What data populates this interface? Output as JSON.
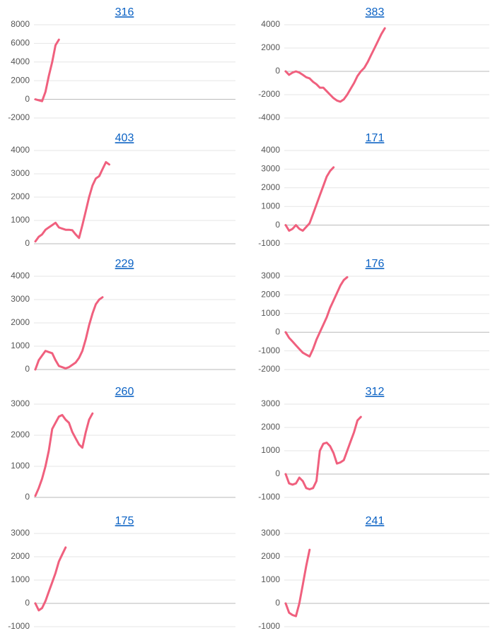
{
  "chart_data": [
    {
      "type": "line",
      "title": "316",
      "color": "#f0607e",
      "ylim": [
        -2000,
        8000
      ],
      "yticks": [
        -2000,
        0,
        2000,
        4000,
        6000,
        8000
      ],
      "grid": true,
      "categories": [
        null,
        null,
        null,
        null,
        null,
        null,
        null,
        null,
        null,
        null,
        null,
        null,
        null,
        null,
        null,
        null,
        null,
        null,
        null,
        null,
        null,
        null,
        null,
        null,
        null,
        null,
        null,
        null,
        null,
        null,
        null,
        null,
        null,
        null,
        null,
        null,
        null,
        null,
        null,
        null,
        null,
        null,
        null,
        null,
        null,
        null,
        null,
        null,
        null,
        null,
        null,
        null,
        null,
        null,
        null,
        null,
        null,
        null,
        null,
        null
      ],
      "values": [
        0,
        -100,
        -200,
        800,
        2500,
        4000,
        5800,
        6400,
        null,
        null,
        null,
        null,
        null,
        null,
        null,
        null,
        null,
        null,
        null,
        null,
        null,
        null,
        null,
        null,
        null,
        null,
        null,
        null,
        null,
        null,
        null,
        null,
        null,
        null,
        null,
        null,
        null,
        null,
        null,
        null,
        null,
        null,
        null,
        null,
        null,
        null,
        null,
        null,
        null,
        null,
        null,
        null,
        null,
        null,
        null,
        null,
        null,
        null,
        null,
        null
      ]
    },
    {
      "type": "line",
      "title": "383",
      "color": "#f0607e",
      "ylim": [
        -4000,
        4000
      ],
      "yticks": [
        -4000,
        -2000,
        0,
        2000,
        4000
      ],
      "grid": true,
      "categories": [
        null,
        null,
        null,
        null,
        null,
        null,
        null,
        null,
        null,
        null,
        null,
        null,
        null,
        null,
        null,
        null,
        null,
        null,
        null,
        null,
        null,
        null,
        null,
        null,
        null,
        null,
        null,
        null,
        null,
        null,
        null,
        null,
        null,
        null,
        null,
        null,
        null,
        null,
        null,
        null,
        null,
        null,
        null,
        null,
        null,
        null,
        null,
        null,
        null,
        null,
        null,
        null,
        null,
        null,
        null,
        null,
        null,
        null,
        null,
        null
      ],
      "values": [
        0,
        -300,
        -100,
        0,
        -100,
        -300,
        -500,
        -600,
        -900,
        -1100,
        -1400,
        -1400,
        -1700,
        -2000,
        -2300,
        -2500,
        -2600,
        -2400,
        -2000,
        -1500,
        -1000,
        -400,
        0,
        300,
        800,
        1400,
        2000,
        2600,
        3200,
        3700,
        null,
        null,
        null,
        null,
        null,
        null,
        null,
        null,
        null,
        null,
        null,
        null,
        null,
        null,
        null,
        null,
        null,
        null,
        null,
        null,
        null,
        null,
        null,
        null,
        null,
        null,
        null,
        null,
        null,
        null
      ]
    },
    {
      "type": "line",
      "title": "403",
      "color": "#f0607e",
      "ylim": [
        0,
        4000
      ],
      "yticks": [
        0,
        1000,
        2000,
        3000,
        4000
      ],
      "grid": true,
      "categories": [
        null,
        null,
        null,
        null,
        null,
        null,
        null,
        null,
        null,
        null,
        null,
        null,
        null,
        null,
        null,
        null,
        null,
        null,
        null,
        null,
        null,
        null,
        null,
        null,
        null,
        null,
        null,
        null,
        null,
        null,
        null,
        null,
        null,
        null,
        null,
        null,
        null,
        null,
        null,
        null,
        null,
        null,
        null,
        null,
        null,
        null,
        null,
        null,
        null,
        null,
        null,
        null,
        null,
        null,
        null,
        null,
        null,
        null,
        null,
        null
      ],
      "values": [
        100,
        300,
        400,
        600,
        700,
        800,
        900,
        700,
        650,
        600,
        600,
        580,
        400,
        250,
        800,
        1400,
        2000,
        2500,
        2800,
        2900,
        3200,
        3500,
        3400,
        null,
        null,
        null,
        null,
        null,
        null,
        null,
        null,
        null,
        null,
        null,
        null,
        null,
        null,
        null,
        null,
        null,
        null,
        null,
        null,
        null,
        null,
        null,
        null,
        null,
        null,
        null,
        null,
        null,
        null,
        null,
        null,
        null,
        null,
        null,
        null,
        null
      ]
    },
    {
      "type": "line",
      "title": "171",
      "color": "#f0607e",
      "ylim": [
        -1000,
        4000
      ],
      "yticks": [
        -1000,
        0,
        1000,
        2000,
        3000,
        4000
      ],
      "grid": true,
      "categories": [
        null,
        null,
        null,
        null,
        null,
        null,
        null,
        null,
        null,
        null,
        null,
        null,
        null,
        null,
        null,
        null,
        null,
        null,
        null,
        null,
        null,
        null,
        null,
        null,
        null,
        null,
        null,
        null,
        null,
        null,
        null,
        null,
        null,
        null,
        null,
        null,
        null,
        null,
        null,
        null,
        null,
        null,
        null,
        null,
        null,
        null,
        null,
        null,
        null,
        null,
        null,
        null,
        null,
        null,
        null,
        null,
        null,
        null,
        null,
        null
      ],
      "values": [
        0,
        -300,
        -200,
        0,
        -200,
        -300,
        -100,
        100,
        600,
        1100,
        1600,
        2100,
        2600,
        2900,
        3100,
        null,
        null,
        null,
        null,
        null,
        null,
        null,
        null,
        null,
        null,
        null,
        null,
        null,
        null,
        null,
        null,
        null,
        null,
        null,
        null,
        null,
        null,
        null,
        null,
        null,
        null,
        null,
        null,
        null,
        null,
        null,
        null,
        null,
        null,
        null,
        null,
        null,
        null,
        null,
        null,
        null,
        null,
        null,
        null,
        null
      ]
    },
    {
      "type": "line",
      "title": "229",
      "color": "#f0607e",
      "ylim": [
        0,
        4000
      ],
      "yticks": [
        0,
        1000,
        2000,
        3000,
        4000
      ],
      "grid": true,
      "categories": [
        null,
        null,
        null,
        null,
        null,
        null,
        null,
        null,
        null,
        null,
        null,
        null,
        null,
        null,
        null,
        null,
        null,
        null,
        null,
        null,
        null,
        null,
        null,
        null,
        null,
        null,
        null,
        null,
        null,
        null,
        null,
        null,
        null,
        null,
        null,
        null,
        null,
        null,
        null,
        null,
        null,
        null,
        null,
        null,
        null,
        null,
        null,
        null,
        null,
        null,
        null,
        null,
        null,
        null,
        null,
        null,
        null,
        null,
        null,
        null
      ],
      "values": [
        0,
        400,
        600,
        800,
        750,
        700,
        400,
        150,
        100,
        50,
        100,
        200,
        300,
        500,
        800,
        1300,
        1900,
        2400,
        2800,
        3000,
        3100,
        null,
        null,
        null,
        null,
        null,
        null,
        null,
        null,
        null,
        null,
        null,
        null,
        null,
        null,
        null,
        null,
        null,
        null,
        null,
        null,
        null,
        null,
        null,
        null,
        null,
        null,
        null,
        null,
        null,
        null,
        null,
        null,
        null,
        null,
        null,
        null,
        null,
        null,
        null
      ]
    },
    {
      "type": "line",
      "title": "176",
      "color": "#f0607e",
      "ylim": [
        -2000,
        3000
      ],
      "yticks": [
        -2000,
        -1000,
        0,
        1000,
        2000,
        3000
      ],
      "grid": true,
      "categories": [
        null,
        null,
        null,
        null,
        null,
        null,
        null,
        null,
        null,
        null,
        null,
        null,
        null,
        null,
        null,
        null,
        null,
        null,
        null,
        null,
        null,
        null,
        null,
        null,
        null,
        null,
        null,
        null,
        null,
        null,
        null,
        null,
        null,
        null,
        null,
        null,
        null,
        null,
        null,
        null,
        null,
        null,
        null,
        null,
        null,
        null,
        null,
        null,
        null,
        null,
        null,
        null,
        null,
        null,
        null,
        null,
        null,
        null,
        null,
        null
      ],
      "values": [
        0,
        -300,
        -500,
        -700,
        -900,
        -1100,
        -1200,
        -1300,
        -900,
        -400,
        0,
        400,
        800,
        1300,
        1700,
        2100,
        2500,
        2800,
        2950,
        null,
        null,
        null,
        null,
        null,
        null,
        null,
        null,
        null,
        null,
        null,
        null,
        null,
        null,
        null,
        null,
        null,
        null,
        null,
        null,
        null,
        null,
        null,
        null,
        null,
        null,
        null,
        null,
        null,
        null,
        null,
        null,
        null,
        null,
        null,
        null,
        null,
        null,
        null,
        null,
        null
      ]
    },
    {
      "type": "line",
      "title": "260",
      "color": "#f0607e",
      "ylim": [
        0,
        3000
      ],
      "yticks": [
        0,
        1000,
        2000,
        3000
      ],
      "grid": true,
      "categories": [
        null,
        null,
        null,
        null,
        null,
        null,
        null,
        null,
        null,
        null,
        null,
        null,
        null,
        null,
        null,
        null,
        null,
        null,
        null,
        null,
        null,
        null,
        null,
        null,
        null,
        null,
        null,
        null,
        null,
        null,
        null,
        null,
        null,
        null,
        null,
        null,
        null,
        null,
        null,
        null,
        null,
        null,
        null,
        null,
        null,
        null,
        null,
        null,
        null,
        null,
        null,
        null,
        null,
        null,
        null,
        null,
        null,
        null,
        null,
        null
      ],
      "values": [
        50,
        300,
        600,
        1000,
        1500,
        2200,
        2400,
        2600,
        2650,
        2500,
        2400,
        2100,
        1900,
        1700,
        1600,
        2100,
        2500,
        2700,
        null,
        null,
        null,
        null,
        null,
        null,
        null,
        null,
        null,
        null,
        null,
        null,
        null,
        null,
        null,
        null,
        null,
        null,
        null,
        null,
        null,
        null,
        null,
        null,
        null,
        null,
        null,
        null,
        null,
        null,
        null,
        null,
        null,
        null,
        null,
        null,
        null,
        null,
        null,
        null,
        null,
        null
      ]
    },
    {
      "type": "line",
      "title": "312",
      "color": "#f0607e",
      "ylim": [
        -1000,
        3000
      ],
      "yticks": [
        -1000,
        0,
        1000,
        2000,
        3000
      ],
      "grid": true,
      "categories": [
        null,
        null,
        null,
        null,
        null,
        null,
        null,
        null,
        null,
        null,
        null,
        null,
        null,
        null,
        null,
        null,
        null,
        null,
        null,
        null,
        null,
        null,
        null,
        null,
        null,
        null,
        null,
        null,
        null,
        null,
        null,
        null,
        null,
        null,
        null,
        null,
        null,
        null,
        null,
        null,
        null,
        null,
        null,
        null,
        null,
        null,
        null,
        null,
        null,
        null,
        null,
        null,
        null,
        null,
        null,
        null,
        null,
        null,
        null,
        null
      ],
      "values": [
        0,
        -400,
        -450,
        -400,
        -150,
        -300,
        -600,
        -650,
        -600,
        -300,
        1000,
        1300,
        1350,
        1200,
        900,
        450,
        500,
        600,
        1000,
        1400,
        1800,
        2300,
        2450,
        null,
        null,
        null,
        null,
        null,
        null,
        null,
        null,
        null,
        null,
        null,
        null,
        null,
        null,
        null,
        null,
        null,
        null,
        null,
        null,
        null,
        null,
        null,
        null,
        null,
        null,
        null,
        null,
        null,
        null,
        null,
        null,
        null,
        null,
        null,
        null,
        null
      ]
    },
    {
      "type": "line",
      "title": "175",
      "color": "#f0607e",
      "ylim": [
        -1000,
        3000
      ],
      "yticks": [
        -1000,
        0,
        1000,
        2000,
        3000
      ],
      "grid": true,
      "categories": [
        null,
        null,
        null,
        null,
        null,
        null,
        null,
        null,
        null,
        null,
        null,
        null,
        null,
        null,
        null,
        null,
        null,
        null,
        null,
        null,
        null,
        null,
        null,
        null,
        null,
        null,
        null,
        null,
        null,
        null,
        null,
        null,
        null,
        null,
        null,
        null,
        null,
        null,
        null,
        null,
        null,
        null,
        null,
        null,
        null,
        null,
        null,
        null,
        null,
        null,
        null,
        null,
        null,
        null,
        null,
        null,
        null,
        null,
        null,
        null
      ],
      "values": [
        0,
        -300,
        -200,
        100,
        500,
        900,
        1300,
        1800,
        2100,
        2400,
        null,
        null,
        null,
        null,
        null,
        null,
        null,
        null,
        null,
        null,
        null,
        null,
        null,
        null,
        null,
        null,
        null,
        null,
        null,
        null,
        null,
        null,
        null,
        null,
        null,
        null,
        null,
        null,
        null,
        null,
        null,
        null,
        null,
        null,
        null,
        null,
        null,
        null,
        null,
        null,
        null,
        null,
        null,
        null,
        null,
        null,
        null,
        null,
        null,
        null
      ]
    },
    {
      "type": "line",
      "title": "241",
      "color": "#f0607e",
      "ylim": [
        -1000,
        3000
      ],
      "yticks": [
        -1000,
        0,
        1000,
        2000,
        3000
      ],
      "grid": true,
      "categories": [
        null,
        null,
        null,
        null,
        null,
        null,
        null,
        null,
        null,
        null,
        null,
        null,
        null,
        null,
        null,
        null,
        null,
        null,
        null,
        null,
        null,
        null,
        null,
        null,
        null,
        null,
        null,
        null,
        null,
        null,
        null,
        null,
        null,
        null,
        null,
        null,
        null,
        null,
        null,
        null,
        null,
        null,
        null,
        null,
        null,
        null,
        null,
        null,
        null,
        null,
        null,
        null,
        null,
        null,
        null,
        null,
        null,
        null,
        null,
        null
      ],
      "values": [
        0,
        -400,
        -500,
        -550,
        0,
        800,
        1600,
        2300,
        null,
        null,
        null,
        null,
        null,
        null,
        null,
        null,
        null,
        null,
        null,
        null,
        null,
        null,
        null,
        null,
        null,
        null,
        null,
        null,
        null,
        null,
        null,
        null,
        null,
        null,
        null,
        null,
        null,
        null,
        null,
        null,
        null,
        null,
        null,
        null,
        null,
        null,
        null,
        null,
        null,
        null,
        null,
        null,
        null,
        null,
        null,
        null,
        null,
        null,
        null,
        null
      ]
    }
  ]
}
